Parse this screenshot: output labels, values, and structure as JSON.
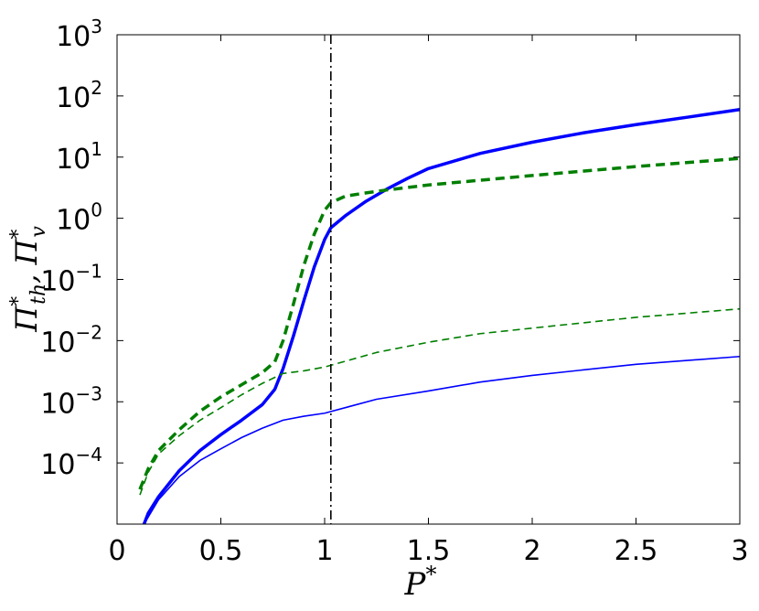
{
  "chart_data": {
    "type": "line",
    "title": "",
    "xlabel": "P*",
    "ylabel": "Π*th, Π*v",
    "x_scale": "linear",
    "y_scale": "log",
    "xlim": [
      0,
      3
    ],
    "ylim": [
      1e-05,
      1000
    ],
    "grid": false,
    "legend": "none",
    "x_ticks": [
      0,
      0.5,
      1,
      1.5,
      2,
      2.5,
      3
    ],
    "x_tick_labels": [
      "0",
      "0.5",
      "1",
      "1.5",
      "2",
      "2.5",
      "3"
    ],
    "y_ticks": [
      0.0001,
      0.001,
      0.01,
      0.1,
      1,
      10,
      100,
      1000
    ],
    "y_tick_labels": [
      {
        "base": "10",
        "exp": "−4"
      },
      {
        "base": "10",
        "exp": "−3"
      },
      {
        "base": "10",
        "exp": "−2"
      },
      {
        "base": "10",
        "exp": "−1"
      },
      {
        "base": "10",
        "exp": "0"
      },
      {
        "base": "10",
        "exp": "1"
      },
      {
        "base": "10",
        "exp": "2"
      },
      {
        "base": "10",
        "exp": "3"
      }
    ],
    "vertical_line": {
      "x": 1.03,
      "style": "dash-dot",
      "color": "#000000"
    },
    "series": [
      {
        "color": "#0000ff",
        "style": "solid",
        "weight": "thick",
        "points": [
          [
            0.13,
            1e-05
          ],
          [
            0.15,
            1.5e-05
          ],
          [
            0.2,
            2.8e-05
          ],
          [
            0.3,
            7.5e-05
          ],
          [
            0.4,
            0.00016
          ],
          [
            0.5,
            0.00029
          ],
          [
            0.6,
            0.0005
          ],
          [
            0.7,
            0.0009
          ],
          [
            0.76,
            0.0016
          ],
          [
            0.8,
            0.0035
          ],
          [
            0.85,
            0.012
          ],
          [
            0.9,
            0.045
          ],
          [
            0.95,
            0.16
          ],
          [
            1.0,
            0.45
          ],
          [
            1.03,
            0.7
          ],
          [
            1.1,
            1.1
          ],
          [
            1.2,
            1.9
          ],
          [
            1.3,
            3.0
          ],
          [
            1.4,
            4.5
          ],
          [
            1.5,
            6.5
          ],
          [
            1.75,
            11.5
          ],
          [
            2.0,
            17.5
          ],
          [
            2.25,
            25
          ],
          [
            2.5,
            34
          ],
          [
            2.75,
            45
          ],
          [
            3.0,
            60
          ]
        ]
      },
      {
        "color": "#007f00",
        "style": "dashed",
        "weight": "thick",
        "points": [
          [
            0.11,
            3.7e-05
          ],
          [
            0.15,
            8e-05
          ],
          [
            0.2,
            0.00016
          ],
          [
            0.3,
            0.00035
          ],
          [
            0.4,
            0.0007
          ],
          [
            0.5,
            0.0012
          ],
          [
            0.6,
            0.0019
          ],
          [
            0.7,
            0.003
          ],
          [
            0.76,
            0.0045
          ],
          [
            0.8,
            0.01
          ],
          [
            0.85,
            0.04
          ],
          [
            0.9,
            0.17
          ],
          [
            0.95,
            0.55
          ],
          [
            1.0,
            1.35
          ],
          [
            1.03,
            1.8
          ],
          [
            1.1,
            2.3
          ],
          [
            1.2,
            2.6
          ],
          [
            1.3,
            2.9
          ],
          [
            1.5,
            3.5
          ],
          [
            2.0,
            5.0
          ],
          [
            2.5,
            7.0
          ],
          [
            3.0,
            9.5
          ]
        ]
      },
      {
        "color": "#0000ff",
        "style": "solid",
        "weight": "thin",
        "points": [
          [
            0.13,
            1e-05
          ],
          [
            0.15,
            1.3e-05
          ],
          [
            0.2,
            2.5e-05
          ],
          [
            0.3,
            6e-05
          ],
          [
            0.4,
            0.00011
          ],
          [
            0.5,
            0.00017
          ],
          [
            0.6,
            0.00026
          ],
          [
            0.7,
            0.00037
          ],
          [
            0.8,
            0.0005
          ],
          [
            0.9,
            0.00058
          ],
          [
            1.0,
            0.00065
          ],
          [
            1.25,
            0.0011
          ],
          [
            1.5,
            0.0015
          ],
          [
            1.75,
            0.0021
          ],
          [
            2.0,
            0.0027
          ],
          [
            2.5,
            0.0041
          ],
          [
            3.0,
            0.0055
          ]
        ]
      },
      {
        "color": "#007f00",
        "style": "dashed",
        "weight": "thin",
        "points": [
          [
            0.11,
            3e-05
          ],
          [
            0.15,
            7e-05
          ],
          [
            0.2,
            0.00014
          ],
          [
            0.3,
            0.00028
          ],
          [
            0.4,
            0.0005
          ],
          [
            0.5,
            0.0008
          ],
          [
            0.6,
            0.0013
          ],
          [
            0.7,
            0.002
          ],
          [
            0.8,
            0.0029
          ],
          [
            0.9,
            0.0032
          ],
          [
            1.0,
            0.0037
          ],
          [
            1.25,
            0.0064
          ],
          [
            1.5,
            0.0094
          ],
          [
            1.75,
            0.013
          ],
          [
            2.0,
            0.016
          ],
          [
            2.5,
            0.024
          ],
          [
            3.0,
            0.033
          ]
        ]
      }
    ]
  }
}
